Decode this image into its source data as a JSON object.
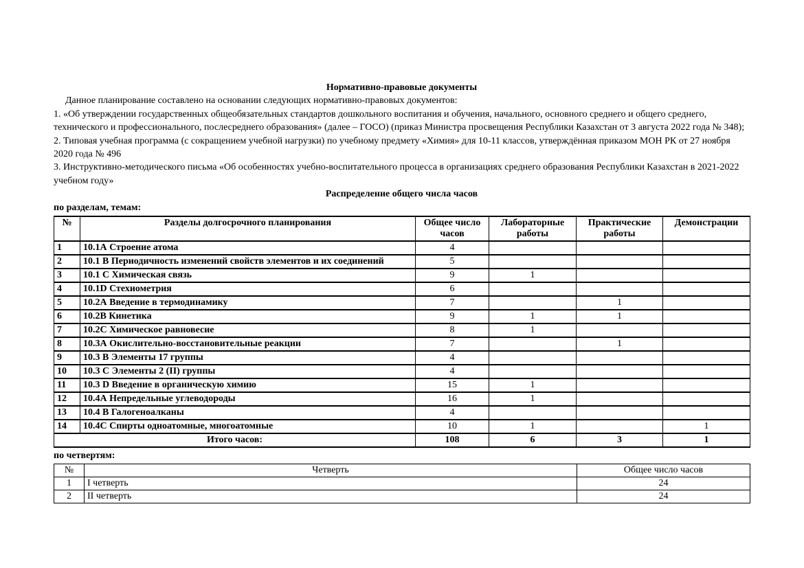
{
  "document": {
    "title": "Нормативно-правовые документы",
    "intro": "Данное планирование составлено на основании следующих нормативно-правовых документов:",
    "list": [
      "1. «Об утверждении государственных общеобязательных стандартов дошкольного воспитания и обучения, начального, основного среднего и общего среднего, технического и профессионального, послесреднего образования» (далее – ГОСО) (приказ Министра просвещения Республики Казахстан от 3 августа 2022 года № 348);",
      "2. Типовая учебная программа (с сокращением учебной нагрузки) по учебному предмету «Химия» для 10-11 классов, утверждённая приказом МОН РК от 27 ноября 2020 года № 496",
      "3. Инструктивно-методического письма «Об особенностях учебно-воспитательного процесса в организациях среднего образования Республики Казахстан в 2021-2022 учебном году»"
    ],
    "section_heading": "Распределение общего числа часов",
    "subheading_sections": "по разделам, темам:",
    "subheading_quarters": "по четвертям:"
  },
  "colors": {
    "text": "#000000",
    "background": "#ffffff",
    "table_border": "#000000"
  },
  "sections_table": {
    "headers": [
      "№",
      "Разделы долгосрочного планирования",
      "Общее число часов",
      "Лабораторные работы",
      "Практические работы",
      "Демонстрации"
    ],
    "rows": [
      {
        "num": "1",
        "section": "10.1А Строение атома",
        "total": "4",
        "lab": "",
        "pract": "",
        "demo": ""
      },
      {
        "num": "2",
        "section": "10.1 В Периодичность изменений свойств элементов и их соединений",
        "total": "5",
        "lab": "",
        "pract": "",
        "demo": ""
      },
      {
        "num": "3",
        "section": "10.1 С Химическая связь",
        "total": "9",
        "lab": "1",
        "pract": "",
        "demo": ""
      },
      {
        "num": "4",
        "section": "10.1D Стехиометрия",
        "total": "6",
        "lab": "",
        "pract": "",
        "demo": ""
      },
      {
        "num": "5",
        "section": "10.2А Введение в термодинамику",
        "total": "7",
        "lab": "",
        "pract": "1",
        "demo": ""
      },
      {
        "num": "6",
        "section": "10.2В Кинетика",
        "total": "9",
        "lab": "1",
        "pract": "1",
        "demo": ""
      },
      {
        "num": "7",
        "section": "10.2С Химическое равновесие",
        "total": "8",
        "lab": "1",
        "pract": "",
        "demo": ""
      },
      {
        "num": "8",
        "section": "10.3А Окислительно-восстановительные реакции",
        "total": "7",
        "lab": "",
        "pract": "1",
        "demo": ""
      },
      {
        "num": "9",
        "section": "10.3 В Элементы 17 группы",
        "total": "4",
        "lab": "",
        "pract": "",
        "demo": ""
      },
      {
        "num": "10",
        "section": "10.3 С Элементы 2 (II) группы",
        "total": "4",
        "lab": "",
        "pract": "",
        "demo": ""
      },
      {
        "num": "11",
        "section": "10.3 D Введение в органическую химию",
        "total": "15",
        "lab": "1",
        "pract": "",
        "demo": ""
      },
      {
        "num": "12",
        "section": "10.4А Непредельные углеводороды",
        "total": "16",
        "lab": "1",
        "pract": "",
        "demo": ""
      },
      {
        "num": "13",
        "section": "10.4 В Галогеноалканы",
        "total": "4",
        "lab": "",
        "pract": "",
        "demo": ""
      },
      {
        "num": "14",
        "section": "10.4С Спирты одноатомные, многоатомные",
        "total": "10",
        "lab": "1",
        "pract": "",
        "demo": "1"
      }
    ],
    "total_row": {
      "label": "Итого часов:",
      "total": "108",
      "lab": "6",
      "pract": "3",
      "demo": "1"
    }
  },
  "quarters_table": {
    "headers": [
      "№",
      "Четверть",
      "Общее число часов"
    ],
    "rows": [
      {
        "num": "1",
        "quarter": "I четверть",
        "hours": "24"
      },
      {
        "num": "2",
        "quarter": "II четверть",
        "hours": "24"
      }
    ]
  }
}
